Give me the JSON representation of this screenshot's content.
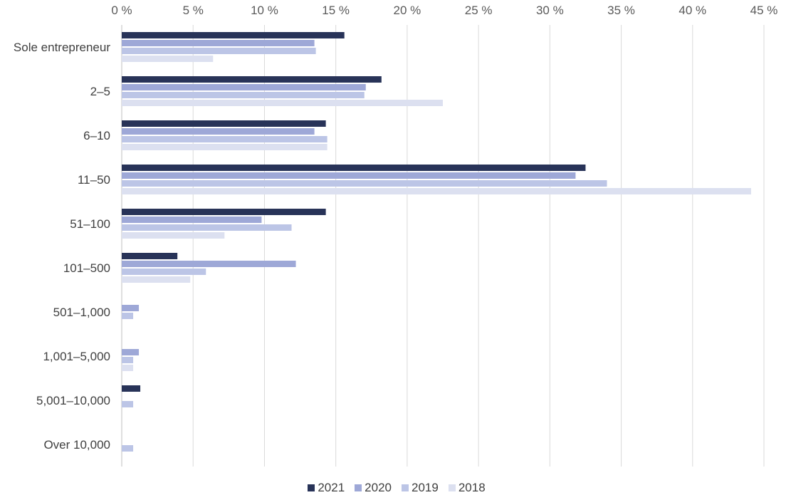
{
  "chart_data": {
    "type": "bar",
    "orientation": "horizontal",
    "categories": [
      "Sole entrepreneur",
      "2–5",
      "6–10",
      "11–50",
      "51–100",
      "101–500",
      "501–1,000",
      "1,001–5,000",
      "5,001–10,000",
      "Over 10,000"
    ],
    "series": [
      {
        "name": "2021",
        "color": "#283358",
        "values": [
          15.6,
          18.2,
          14.3,
          32.5,
          14.3,
          3.9,
          0,
          0,
          1.3,
          0
        ]
      },
      {
        "name": "2020",
        "color": "#9ea8d7",
        "values": [
          13.5,
          17.1,
          13.5,
          31.8,
          9.8,
          12.2,
          1.2,
          1.2,
          0,
          0
        ]
      },
      {
        "name": "2019",
        "color": "#bcc5e6",
        "values": [
          13.6,
          17.0,
          14.4,
          34.0,
          11.9,
          5.9,
          0.8,
          0.8,
          0.8,
          0.8
        ]
      },
      {
        "name": "2018",
        "color": "#dce0f0",
        "values": [
          6.4,
          22.5,
          14.4,
          44.1,
          7.2,
          4.8,
          0,
          0.8,
          0,
          0
        ]
      }
    ],
    "xlim": [
      0,
      45
    ],
    "xticks": [
      0,
      5,
      10,
      15,
      20,
      25,
      30,
      35,
      40,
      45
    ],
    "xtick_labels": [
      "0 %",
      "5 %",
      "10 %",
      "15 %",
      "20 %",
      "25 %",
      "30 %",
      "35 %",
      "40 %",
      "45 %"
    ],
    "x_axis_position": "top",
    "grid": true,
    "legend_position": "bottom",
    "title": "",
    "xlabel": "",
    "ylabel": ""
  }
}
